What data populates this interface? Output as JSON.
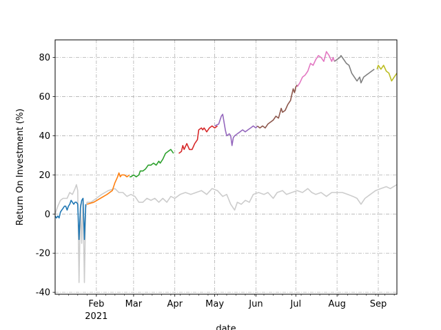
{
  "chart_data": {
    "type": "line",
    "title": "",
    "xlabel": "date",
    "ylabel": "Return On Investment (%)",
    "xlim": [
      "2021-01-01",
      "2021-09-15"
    ],
    "ylim": [
      -41,
      89
    ],
    "grid": true,
    "legend": "none",
    "x_ticks": [
      {
        "date": "2021-02-01",
        "label": "Feb",
        "sublabel": "2021"
      },
      {
        "date": "2021-03-01",
        "label": "Mar",
        "sublabel": ""
      },
      {
        "date": "2021-04-01",
        "label": "Apr",
        "sublabel": ""
      },
      {
        "date": "2021-05-01",
        "label": "May",
        "sublabel": ""
      },
      {
        "date": "2021-06-01",
        "label": "Jun",
        "sublabel": ""
      },
      {
        "date": "2021-07-01",
        "label": "Jul",
        "sublabel": ""
      },
      {
        "date": "2021-08-01",
        "label": "Aug",
        "sublabel": ""
      },
      {
        "date": "2021-09-01",
        "label": "Sep",
        "sublabel": ""
      }
    ],
    "y_ticks": [
      -40,
      -20,
      0,
      20,
      40,
      60,
      80
    ],
    "series": [
      {
        "color": "#cccccc",
        "points": [
          [
            "2021-01-01",
            0
          ],
          [
            "2021-01-03",
            4
          ],
          [
            "2021-01-05",
            7
          ],
          [
            "2021-01-07",
            8
          ],
          [
            "2021-01-10",
            8
          ],
          [
            "2021-01-12",
            11
          ],
          [
            "2021-01-14",
            10
          ],
          [
            "2021-01-16",
            13
          ],
          [
            "2021-01-17",
            15
          ],
          [
            "2021-01-18",
            12
          ],
          [
            "2021-01-19",
            -35
          ],
          [
            "2021-01-20",
            5
          ],
          [
            "2021-01-21",
            -15
          ],
          [
            "2021-01-22",
            8
          ],
          [
            "2021-01-23",
            -35
          ],
          [
            "2021-01-24",
            3
          ],
          [
            "2021-01-25",
            6
          ],
          [
            "2021-01-28",
            6
          ],
          [
            "2021-02-01",
            8
          ],
          [
            "2021-02-05",
            10
          ],
          [
            "2021-02-10",
            12
          ],
          [
            "2021-02-15",
            13
          ],
          [
            "2021-02-18",
            11
          ],
          [
            "2021-02-21",
            11
          ],
          [
            "2021-02-24",
            9
          ],
          [
            "2021-02-27",
            10
          ],
          [
            "2021-03-02",
            9
          ],
          [
            "2021-03-05",
            6
          ],
          [
            "2021-03-08",
            6
          ],
          [
            "2021-03-11",
            8
          ],
          [
            "2021-03-14",
            7
          ],
          [
            "2021-03-17",
            8
          ],
          [
            "2021-03-20",
            6
          ],
          [
            "2021-03-23",
            8
          ],
          [
            "2021-03-26",
            6
          ],
          [
            "2021-03-29",
            9
          ],
          [
            "2021-04-01",
            8
          ],
          [
            "2021-04-05",
            10
          ],
          [
            "2021-04-09",
            11
          ],
          [
            "2021-04-13",
            10
          ],
          [
            "2021-04-17",
            11
          ],
          [
            "2021-04-21",
            12
          ],
          [
            "2021-04-25",
            10
          ],
          [
            "2021-04-29",
            13
          ],
          [
            "2021-05-03",
            12
          ],
          [
            "2021-05-07",
            9
          ],
          [
            "2021-05-10",
            10
          ],
          [
            "2021-05-13",
            5
          ],
          [
            "2021-05-16",
            2
          ],
          [
            "2021-05-18",
            6
          ],
          [
            "2021-05-21",
            5
          ],
          [
            "2021-05-24",
            7
          ],
          [
            "2021-05-27",
            6
          ],
          [
            "2021-05-30",
            10
          ],
          [
            "2021-06-03",
            11
          ],
          [
            "2021-06-07",
            10
          ],
          [
            "2021-06-10",
            11
          ],
          [
            "2021-06-14",
            8
          ],
          [
            "2021-06-17",
            11
          ],
          [
            "2021-06-21",
            12
          ],
          [
            "2021-06-24",
            10
          ],
          [
            "2021-06-28",
            11
          ],
          [
            "2021-07-02",
            12
          ],
          [
            "2021-07-06",
            11
          ],
          [
            "2021-07-10",
            13
          ],
          [
            "2021-07-13",
            11
          ],
          [
            "2021-07-16",
            10
          ],
          [
            "2021-07-20",
            11
          ],
          [
            "2021-07-24",
            9
          ],
          [
            "2021-07-28",
            11
          ],
          [
            "2021-08-01",
            11
          ],
          [
            "2021-08-05",
            11
          ],
          [
            "2021-08-09",
            10
          ],
          [
            "2021-08-13",
            9
          ],
          [
            "2021-08-16",
            8
          ],
          [
            "2021-08-19",
            5
          ],
          [
            "2021-08-22",
            8
          ],
          [
            "2021-08-26",
            10
          ],
          [
            "2021-08-30",
            12
          ],
          [
            "2021-09-03",
            13
          ],
          [
            "2021-09-07",
            14
          ],
          [
            "2021-09-10",
            13
          ],
          [
            "2021-09-15",
            15
          ]
        ]
      },
      {
        "color": "#1f77b4",
        "points": [
          [
            "2021-01-01",
            -1
          ],
          [
            "2021-01-02",
            -2
          ],
          [
            "2021-01-03",
            -1
          ],
          [
            "2021-01-04",
            -2
          ],
          [
            "2021-01-05",
            1
          ],
          [
            "2021-01-06",
            2
          ],
          [
            "2021-01-07",
            3
          ],
          [
            "2021-01-08",
            4
          ],
          [
            "2021-01-09",
            4
          ],
          [
            "2021-01-10",
            2
          ],
          [
            "2021-01-11",
            4
          ],
          [
            "2021-01-12",
            5
          ],
          [
            "2021-01-13",
            7
          ],
          [
            "2021-01-14",
            6
          ],
          [
            "2021-01-15",
            5
          ],
          [
            "2021-01-16",
            6
          ],
          [
            "2021-01-17",
            6
          ],
          [
            "2021-01-18",
            5
          ],
          [
            "2021-01-19",
            -13
          ],
          [
            "2021-01-20",
            3
          ],
          [
            "2021-01-21",
            7
          ],
          [
            "2021-01-22",
            8
          ],
          [
            "2021-01-23",
            -13
          ],
          [
            "2021-01-24",
            5
          ]
        ]
      },
      {
        "color": "#ff7f0e",
        "points": [
          [
            "2021-01-25",
            5
          ],
          [
            "2021-01-30",
            6
          ],
          [
            "2021-02-04",
            8
          ],
          [
            "2021-02-09",
            10
          ],
          [
            "2021-02-13",
            12
          ],
          [
            "2021-02-15",
            16
          ],
          [
            "2021-02-17",
            19
          ],
          [
            "2021-02-18",
            21
          ],
          [
            "2021-02-19",
            19
          ],
          [
            "2021-02-20",
            20
          ],
          [
            "2021-02-22",
            20
          ],
          [
            "2021-02-24",
            19
          ],
          [
            "2021-02-26",
            20
          ]
        ]
      },
      {
        "color": "#2ca02c",
        "points": [
          [
            "2021-02-26",
            19
          ],
          [
            "2021-02-27",
            19
          ],
          [
            "2021-03-01",
            20
          ],
          [
            "2021-03-03",
            19
          ],
          [
            "2021-03-05",
            20
          ],
          [
            "2021-03-06",
            22
          ],
          [
            "2021-03-08",
            22
          ],
          [
            "2021-03-10",
            23
          ],
          [
            "2021-03-12",
            25
          ],
          [
            "2021-03-14",
            25
          ],
          [
            "2021-03-16",
            26
          ],
          [
            "2021-03-18",
            25
          ],
          [
            "2021-03-20",
            27
          ],
          [
            "2021-03-21",
            26
          ],
          [
            "2021-03-23",
            28
          ],
          [
            "2021-03-25",
            31
          ],
          [
            "2021-03-27",
            32
          ],
          [
            "2021-03-29",
            33
          ],
          [
            "2021-03-31",
            31
          ]
        ]
      },
      {
        "color": "#d62728",
        "points": [
          [
            "2021-04-04",
            31
          ],
          [
            "2021-04-06",
            32
          ],
          [
            "2021-04-07",
            35
          ],
          [
            "2021-04-08",
            33
          ],
          [
            "2021-04-10",
            36
          ],
          [
            "2021-04-12",
            33
          ],
          [
            "2021-04-14",
            33
          ],
          [
            "2021-04-16",
            36
          ],
          [
            "2021-04-18",
            38
          ],
          [
            "2021-04-19",
            43
          ],
          [
            "2021-04-21",
            44
          ],
          [
            "2021-04-22",
            43
          ],
          [
            "2021-04-23",
            44
          ],
          [
            "2021-04-25",
            42
          ],
          [
            "2021-04-27",
            44
          ],
          [
            "2021-04-29",
            45
          ],
          [
            "2021-05-01",
            44
          ],
          [
            "2021-05-03",
            45
          ]
        ]
      },
      {
        "color": "#9467bd",
        "points": [
          [
            "2021-05-01",
            45
          ],
          [
            "2021-05-04",
            46
          ],
          [
            "2021-05-06",
            50
          ],
          [
            "2021-05-07",
            51
          ],
          [
            "2021-05-08",
            47
          ],
          [
            "2021-05-09",
            43
          ],
          [
            "2021-05-10",
            40
          ],
          [
            "2021-05-12",
            41
          ],
          [
            "2021-05-13",
            40
          ],
          [
            "2021-05-14",
            35
          ],
          [
            "2021-05-15",
            39
          ],
          [
            "2021-05-16",
            40
          ],
          [
            "2021-05-18",
            41
          ],
          [
            "2021-05-20",
            42
          ],
          [
            "2021-05-22",
            43
          ],
          [
            "2021-05-24",
            42
          ],
          [
            "2021-05-26",
            43
          ],
          [
            "2021-05-28",
            44
          ],
          [
            "2021-05-30",
            45
          ],
          [
            "2021-06-01",
            44
          ],
          [
            "2021-06-02",
            45
          ]
        ]
      },
      {
        "color": "#8c564b",
        "points": [
          [
            "2021-06-02",
            45
          ],
          [
            "2021-06-04",
            44
          ],
          [
            "2021-06-06",
            45
          ],
          [
            "2021-06-08",
            44
          ],
          [
            "2021-06-10",
            46
          ],
          [
            "2021-06-12",
            47
          ],
          [
            "2021-06-14",
            48
          ],
          [
            "2021-06-16",
            50
          ],
          [
            "2021-06-18",
            49
          ],
          [
            "2021-06-20",
            54
          ],
          [
            "2021-06-21",
            52
          ],
          [
            "2021-06-23",
            53
          ],
          [
            "2021-06-25",
            56
          ],
          [
            "2021-06-27",
            58
          ],
          [
            "2021-06-28",
            61
          ],
          [
            "2021-06-29",
            64
          ],
          [
            "2021-06-30",
            62
          ],
          [
            "2021-07-01",
            65
          ],
          [
            "2021-07-02",
            66
          ]
        ]
      },
      {
        "color": "#e377c2",
        "points": [
          [
            "2021-07-02",
            65
          ],
          [
            "2021-07-04",
            67
          ],
          [
            "2021-07-06",
            70
          ],
          [
            "2021-07-08",
            71
          ],
          [
            "2021-07-10",
            73
          ],
          [
            "2021-07-12",
            77
          ],
          [
            "2021-07-14",
            76
          ],
          [
            "2021-07-16",
            79
          ],
          [
            "2021-07-18",
            81
          ],
          [
            "2021-07-20",
            80
          ],
          [
            "2021-07-22",
            78
          ],
          [
            "2021-07-24",
            83
          ],
          [
            "2021-07-26",
            81
          ],
          [
            "2021-07-28",
            78
          ],
          [
            "2021-07-29",
            80
          ],
          [
            "2021-07-30",
            78
          ]
        ]
      },
      {
        "color": "#7f7f7f",
        "points": [
          [
            "2021-07-30",
            78
          ],
          [
            "2021-08-01",
            79
          ],
          [
            "2021-08-03",
            80
          ],
          [
            "2021-08-04",
            81
          ],
          [
            "2021-08-06",
            79
          ],
          [
            "2021-08-08",
            77
          ],
          [
            "2021-08-10",
            76
          ],
          [
            "2021-08-12",
            72
          ],
          [
            "2021-08-14",
            70
          ],
          [
            "2021-08-16",
            68
          ],
          [
            "2021-08-18",
            70
          ],
          [
            "2021-08-19",
            67
          ],
          [
            "2021-08-21",
            70
          ],
          [
            "2021-08-23",
            71
          ],
          [
            "2021-08-25",
            72
          ],
          [
            "2021-08-27",
            73
          ],
          [
            "2021-08-29",
            74
          ]
        ]
      },
      {
        "color": "#bcbd22",
        "points": [
          [
            "2021-08-31",
            74
          ],
          [
            "2021-09-01",
            76
          ],
          [
            "2021-09-02",
            75
          ],
          [
            "2021-09-03",
            74
          ],
          [
            "2021-09-05",
            76
          ],
          [
            "2021-09-07",
            73
          ],
          [
            "2021-09-09",
            72
          ],
          [
            "2021-09-11",
            68
          ],
          [
            "2021-09-13",
            70
          ],
          [
            "2021-09-15",
            72
          ]
        ]
      }
    ]
  }
}
